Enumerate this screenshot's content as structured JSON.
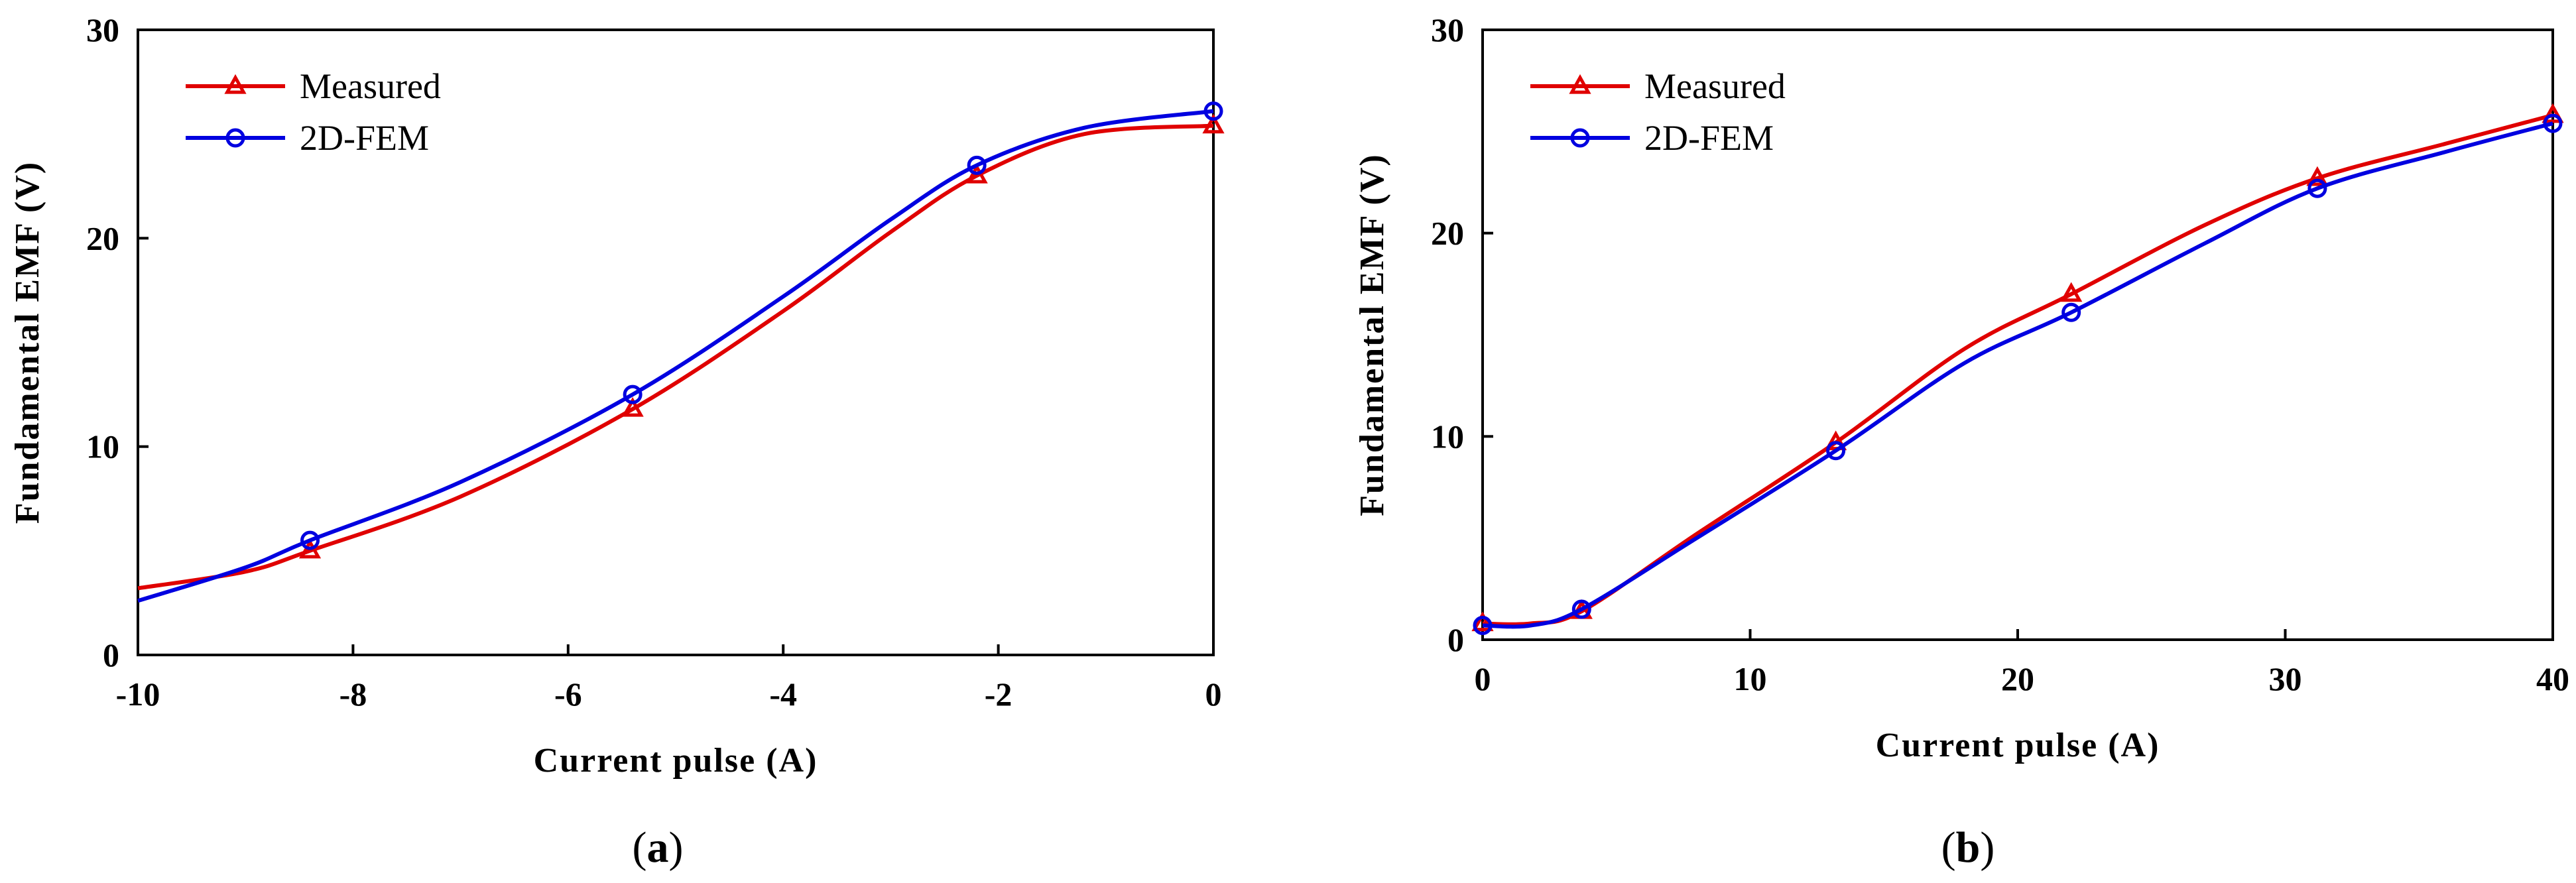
{
  "chart_data": [
    {
      "type": "line",
      "panel": "a",
      "xlabel": "Current pulse (A)",
      "ylabel": "Fundamental EMF (V)",
      "xlim": [
        -10,
        0
      ],
      "ylim": [
        0,
        30
      ],
      "xticks": [
        -10,
        -8,
        -6,
        -4,
        -2,
        0
      ],
      "yticks": [
        0,
        10,
        20,
        30
      ],
      "series": [
        {
          "name": "Measured",
          "color": "#e00000",
          "marker": "triangle",
          "curve": [
            [
              -10,
              3.2
            ],
            [
              -9,
              4.0
            ],
            [
              -8.4,
              5.0
            ],
            [
              -7,
              7.6
            ],
            [
              -5.4,
              11.8
            ],
            [
              -4,
              16.5
            ],
            [
              -3,
              20.3
            ],
            [
              -2.2,
              23.0
            ],
            [
              -1.2,
              25.0
            ],
            [
              0,
              25.4
            ]
          ],
          "points": [
            [
              -8.4,
              5.0
            ],
            [
              -5.4,
              11.8
            ],
            [
              -2.2,
              23.0
            ],
            [
              0,
              25.4
            ]
          ]
        },
        {
          "name": "2D-FEM",
          "color": "#0000e0",
          "marker": "circle",
          "curve": [
            [
              -10,
              2.6
            ],
            [
              -9,
              4.2
            ],
            [
              -8.4,
              5.5
            ],
            [
              -7,
              8.3
            ],
            [
              -5.4,
              12.5
            ],
            [
              -4,
              17.2
            ],
            [
              -3,
              20.9
            ],
            [
              -2.2,
              23.5
            ],
            [
              -1.2,
              25.3
            ],
            [
              0,
              26.1
            ]
          ],
          "points": [
            [
              -8.4,
              5.5
            ],
            [
              -5.4,
              12.5
            ],
            [
              -2.2,
              23.5
            ],
            [
              0,
              26.1
            ]
          ]
        }
      ]
    },
    {
      "type": "line",
      "panel": "b",
      "xlabel": "Current pulse (A)",
      "ylabel": "Fundamental EMF (V)",
      "xlim": [
        0,
        40
      ],
      "ylim": [
        0,
        30
      ],
      "xticks": [
        0,
        10,
        20,
        30,
        40
      ],
      "yticks": [
        0,
        10,
        20,
        30
      ],
      "series": [
        {
          "name": "Measured",
          "color": "#e00000",
          "marker": "triangle",
          "curve": [
            [
              0,
              0.8
            ],
            [
              1.8,
              0.8
            ],
            [
              3.7,
              1.4
            ],
            [
              8,
              5.2
            ],
            [
              13.2,
              9.7
            ],
            [
              18,
              14.3
            ],
            [
              22,
              17.0
            ],
            [
              27,
              20.4
            ],
            [
              31.2,
              22.7
            ],
            [
              36,
              24.4
            ],
            [
              40,
              25.8
            ]
          ],
          "points": [
            [
              0,
              0.8
            ],
            [
              3.7,
              1.4
            ],
            [
              13.2,
              9.7
            ],
            [
              22,
              17.0
            ],
            [
              31.2,
              22.7
            ],
            [
              40,
              25.8
            ]
          ]
        },
        {
          "name": "2D-FEM",
          "color": "#0000e0",
          "marker": "circle",
          "curve": [
            [
              0,
              0.7
            ],
            [
              1.8,
              0.7
            ],
            [
              3.7,
              1.5
            ],
            [
              8,
              5.0
            ],
            [
              13.2,
              9.3
            ],
            [
              18,
              13.6
            ],
            [
              22,
              16.1
            ],
            [
              27,
              19.5
            ],
            [
              31.2,
              22.2
            ],
            [
              36,
              24.0
            ],
            [
              40,
              25.4
            ]
          ],
          "points": [
            [
              0,
              0.7
            ],
            [
              3.7,
              1.5
            ],
            [
              13.2,
              9.3
            ],
            [
              22,
              16.1
            ],
            [
              31.2,
              22.2
            ],
            [
              40,
              25.4
            ]
          ]
        }
      ]
    }
  ],
  "panels": {
    "a": {
      "label_open": "(",
      "label_letter": "a",
      "label_close": ")"
    },
    "b": {
      "label_open": "(",
      "label_letter": "b",
      "label_close": ")"
    }
  }
}
